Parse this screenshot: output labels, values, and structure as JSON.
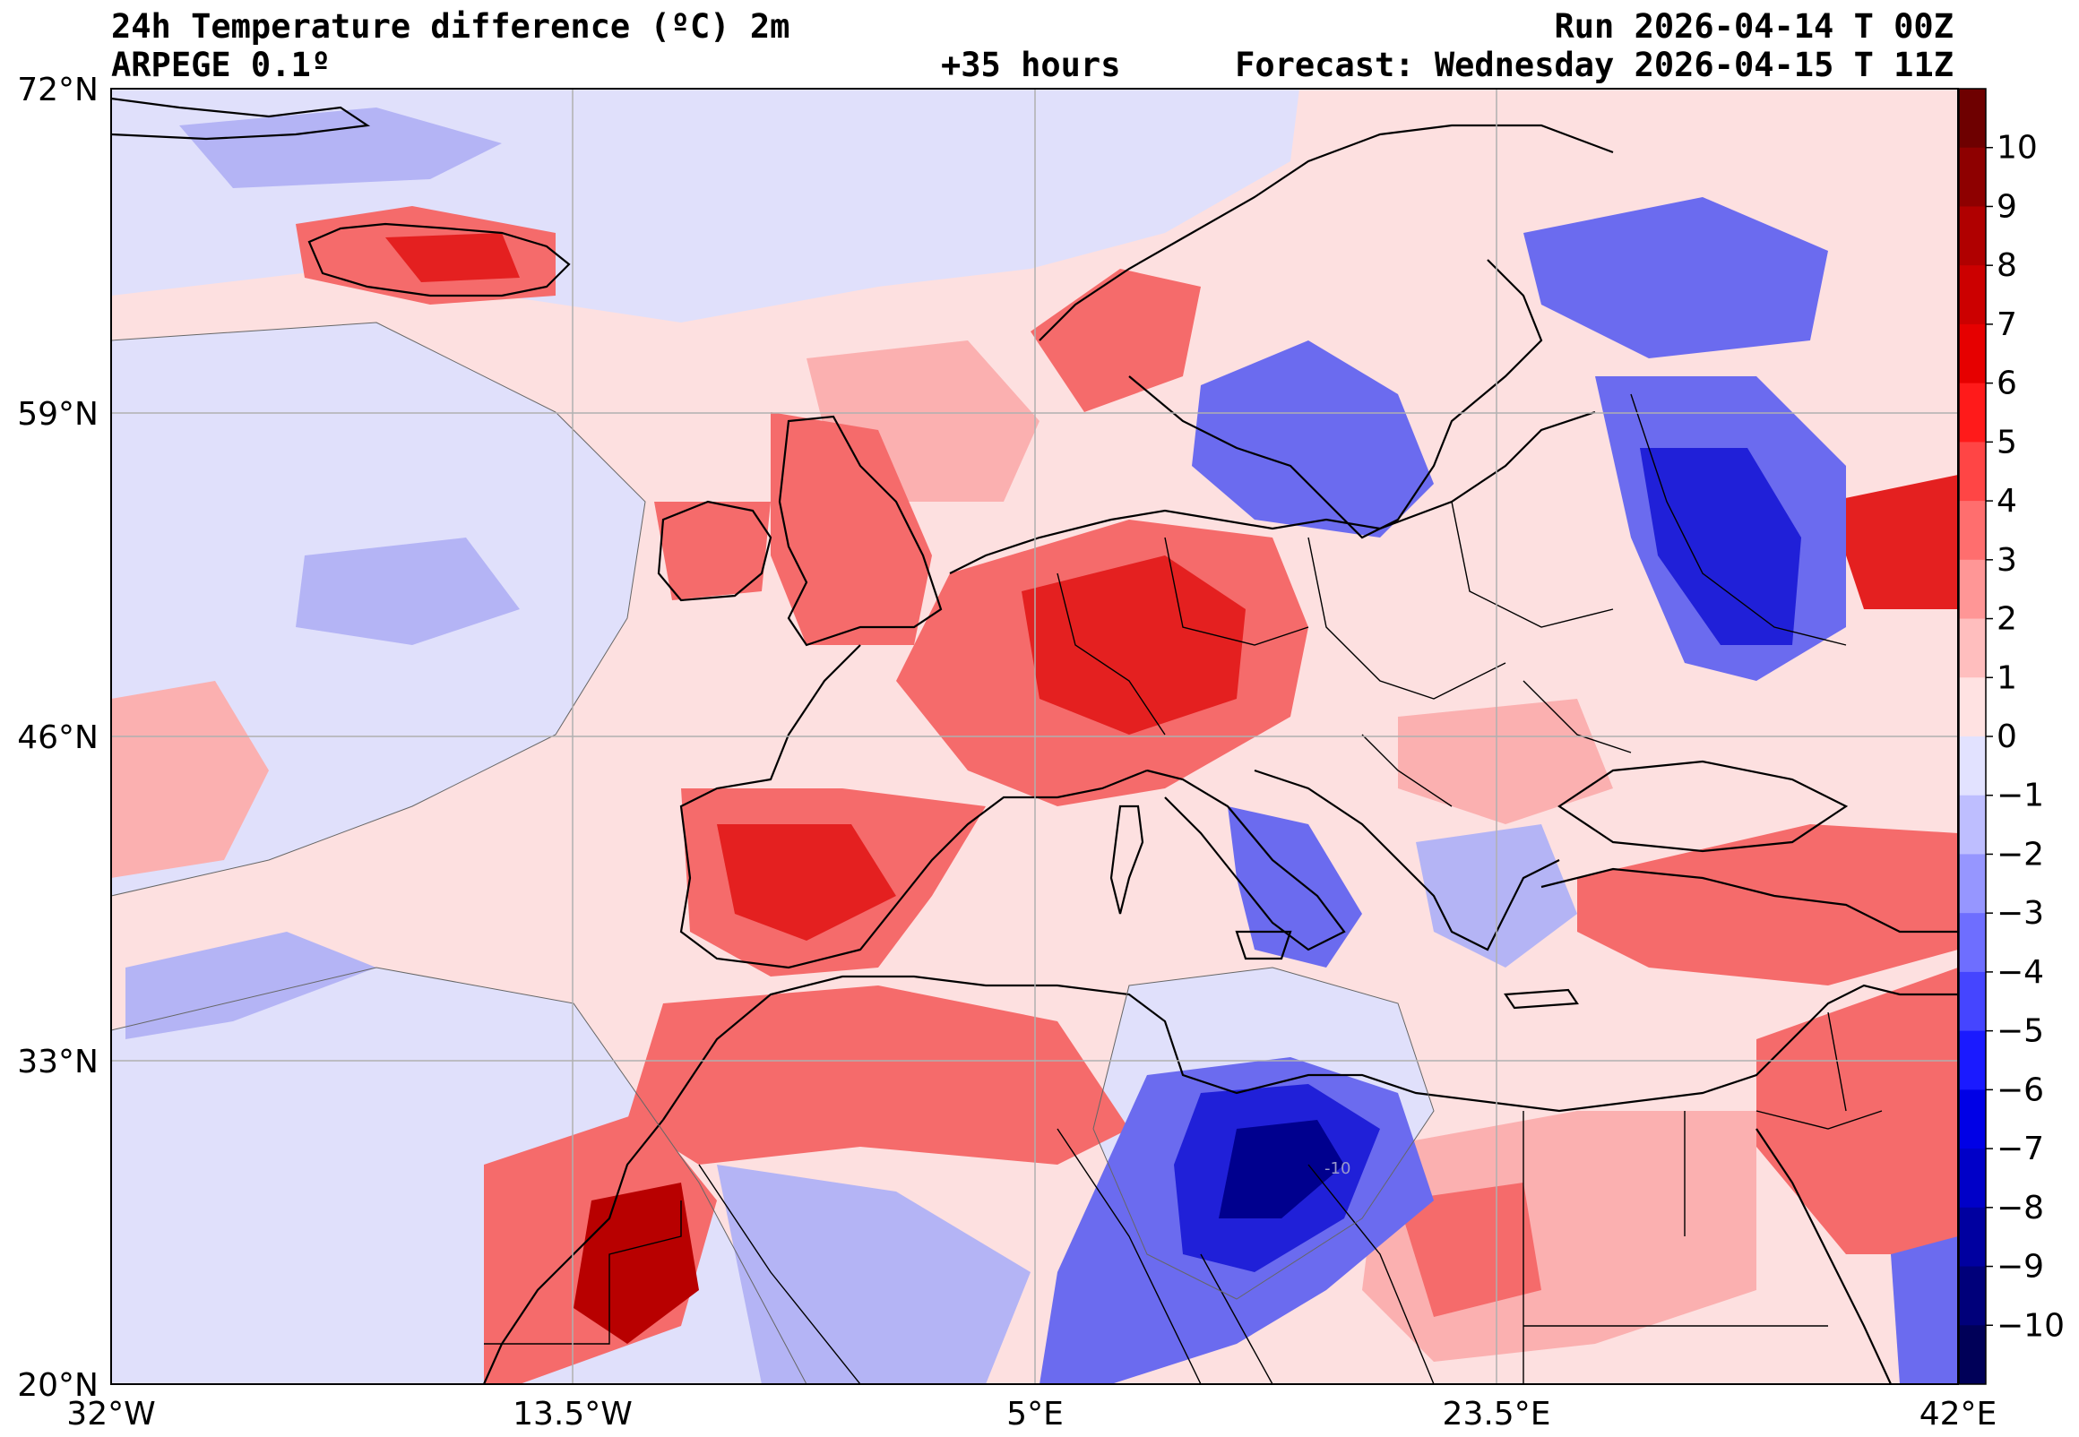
{
  "header": {
    "title": "24h Temperature difference (ºC) 2m",
    "model": "ARPEGE 0.1º",
    "lead": "+35 hours",
    "run": "Run 2026-04-14 T 00Z",
    "forecast": "Forecast: Wednesday 2026-04-15 T 11Z"
  },
  "map": {
    "lat_labels": [
      "72°N",
      "59°N",
      "46°N",
      "33°N",
      "20°N"
    ],
    "lon_labels": [
      "32°W",
      "13.5°W",
      "5°E",
      "23.5°E",
      "42°E"
    ],
    "lat_values": [
      72,
      59,
      46,
      33,
      20
    ],
    "lon_values": [
      -32,
      -13.5,
      5,
      23.5,
      42
    ],
    "contour_label": "-10",
    "colors": {
      "ocean_light_warm": "#fde0e0",
      "light_cool": "#e0e0fb",
      "warm_1": "#fbb0b0",
      "warm_2": "#f56b6b",
      "warm_3": "#e42020",
      "warm_4": "#b80000",
      "cool_1": "#b4b4f5",
      "cool_2": "#6b6bef",
      "cool_3": "#2020d8",
      "cool_4": "#00008e"
    }
  },
  "colorbar": {
    "levels": [
      "10",
      "9",
      "8",
      "7",
      "6",
      "5",
      "4",
      "3",
      "2",
      "1",
      "0",
      "−1",
      "−2",
      "−3",
      "−4",
      "−5",
      "−6",
      "−7",
      "−8",
      "−9",
      "−10"
    ],
    "colors": [
      "#6e0000",
      "#8e0000",
      "#b00000",
      "#cc0000",
      "#e60000",
      "#ff1a1a",
      "#ff4545",
      "#ff6e6e",
      "#ff9696",
      "#ffbebe",
      "#ffe2e2",
      "#e2e2ff",
      "#bebeff",
      "#9696ff",
      "#6e6eff",
      "#4545ff",
      "#1a1aff",
      "#0000e6",
      "#0000c8",
      "#0000a0",
      "#00007a",
      "#000058"
    ]
  }
}
